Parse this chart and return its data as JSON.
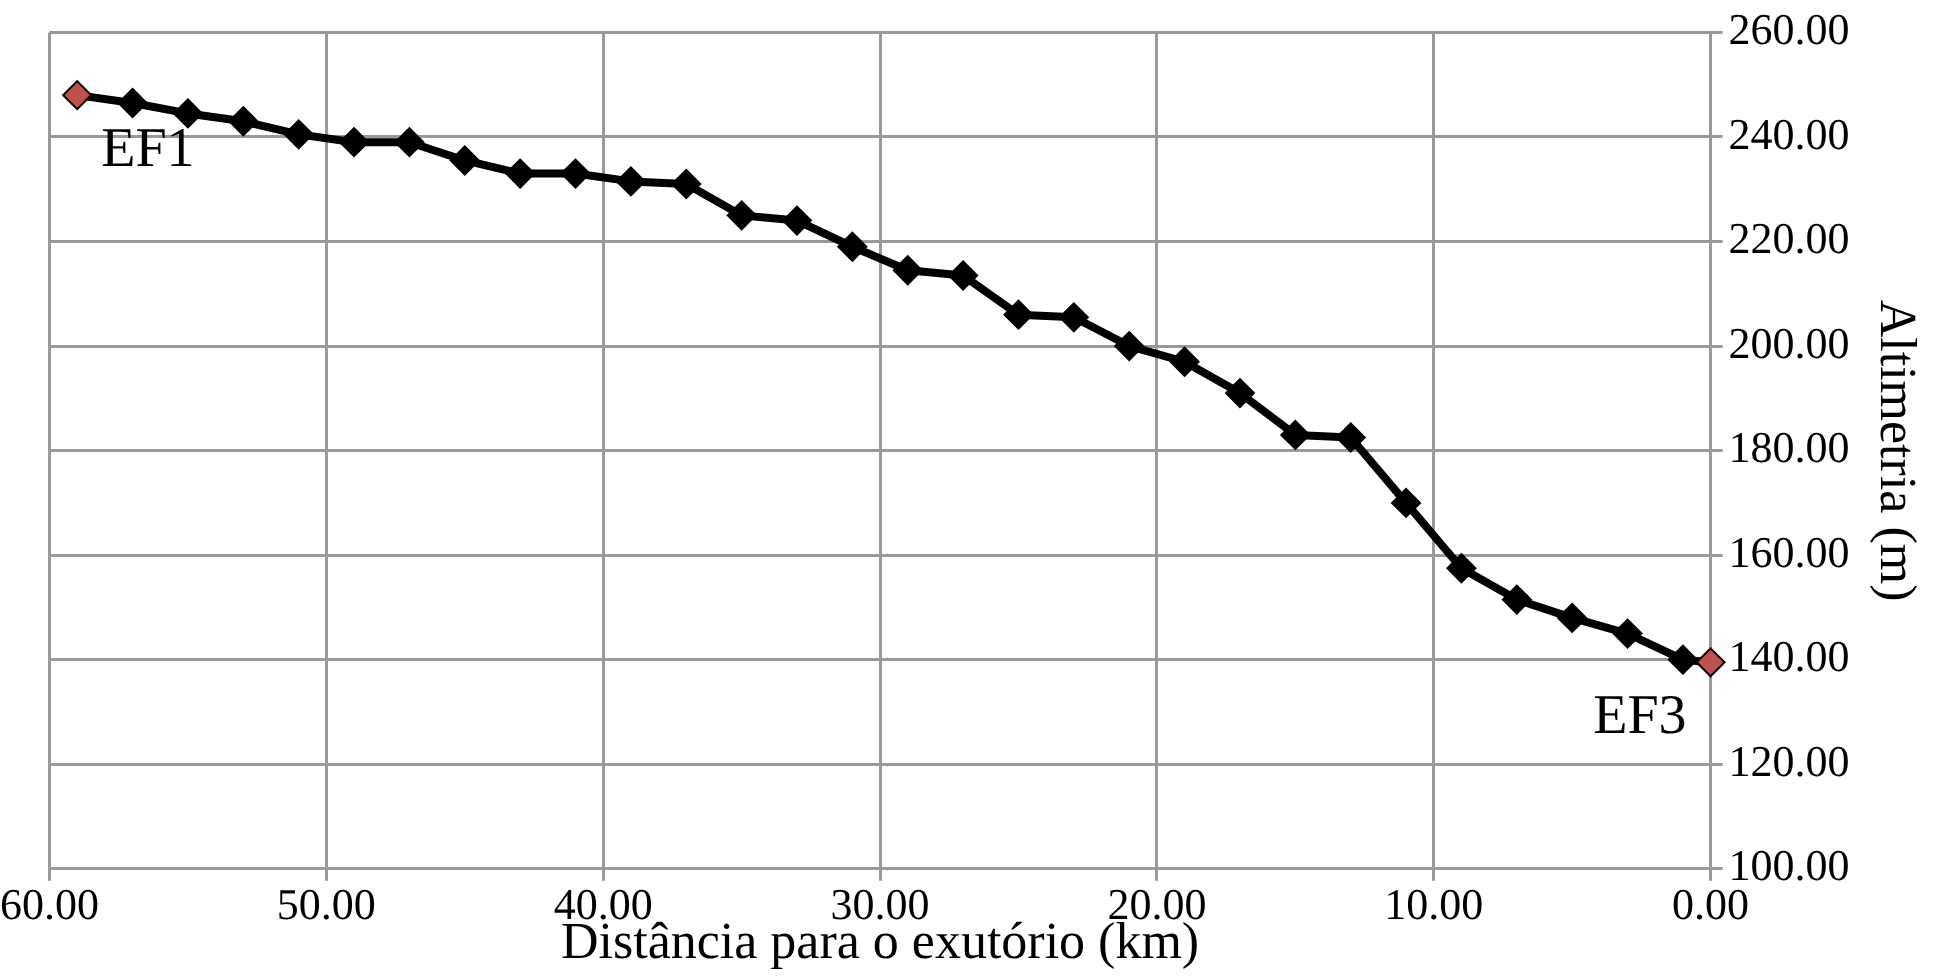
{
  "chart_data": {
    "type": "line",
    "xlabel": "Distância para o exutório (km)",
    "ylabel": "Altimetria (m)",
    "x": [
      59,
      57,
      55,
      53,
      51,
      49,
      47,
      45,
      43,
      41,
      39,
      37,
      35,
      33,
      31,
      29,
      27,
      25,
      23,
      21,
      19,
      17,
      15,
      13,
      11,
      9,
      7,
      5,
      3,
      1,
      0
    ],
    "series": [
      {
        "color": "#000000",
        "colors": [
          "#c0504d",
          "#000000",
          "#000000",
          "#000000",
          "#000000",
          "#000000",
          "#000000",
          "#000000",
          "#000000",
          "#000000",
          "#000000",
          "#000000",
          "#000000",
          "#000000",
          "#000000",
          "#000000",
          "#000000",
          "#000000",
          "#000000",
          "#000000",
          "#000000",
          "#000000",
          "#000000",
          "#000000",
          "#000000",
          "#000000",
          "#000000",
          "#000000",
          "#000000",
          "#000000",
          "#c0504d"
        ],
        "values": [
          248,
          246.5,
          244.5,
          243,
          240.5,
          239,
          239,
          235.5,
          233,
          233,
          231.5,
          231,
          225,
          224,
          219,
          214.5,
          213.5,
          206,
          205.5,
          200,
          197,
          191,
          183,
          182.5,
          170,
          157.5,
          151.5,
          148,
          145,
          140,
          139.5
        ]
      }
    ],
    "xlim": [
      60,
      0
    ],
    "xticks": [
      {
        "value": 60,
        "label": "60.00"
      },
      {
        "value": 50,
        "label": "50.00"
      },
      {
        "value": 40,
        "label": "40.00"
      },
      {
        "value": 30,
        "label": "30.00"
      },
      {
        "value": 20,
        "label": "20.00"
      },
      {
        "value": 10,
        "label": "10.00"
      },
      {
        "value": 0,
        "label": "0.00"
      }
    ],
    "ylim": [
      100,
      260
    ],
    "yticks": [
      {
        "value": 100,
        "label": "100.00"
      },
      {
        "value": 120,
        "label": "120.00"
      },
      {
        "value": 140,
        "label": "140.00"
      },
      {
        "value": 160,
        "label": "160.00"
      },
      {
        "value": 180,
        "label": "180.00"
      },
      {
        "value": 200,
        "label": "200.00"
      },
      {
        "value": 220,
        "label": "220.00"
      },
      {
        "value": 240,
        "label": "240.00"
      },
      {
        "value": 260,
        "label": "260.00"
      }
    ],
    "annotations": [
      {
        "text": "EF1",
        "x": 59,
        "y": 248
      },
      {
        "text": "EF3",
        "x": 0,
        "y": 139.5
      }
    ],
    "grid": true,
    "legend": false,
    "marker": "diamond",
    "line_style": "solid"
  }
}
